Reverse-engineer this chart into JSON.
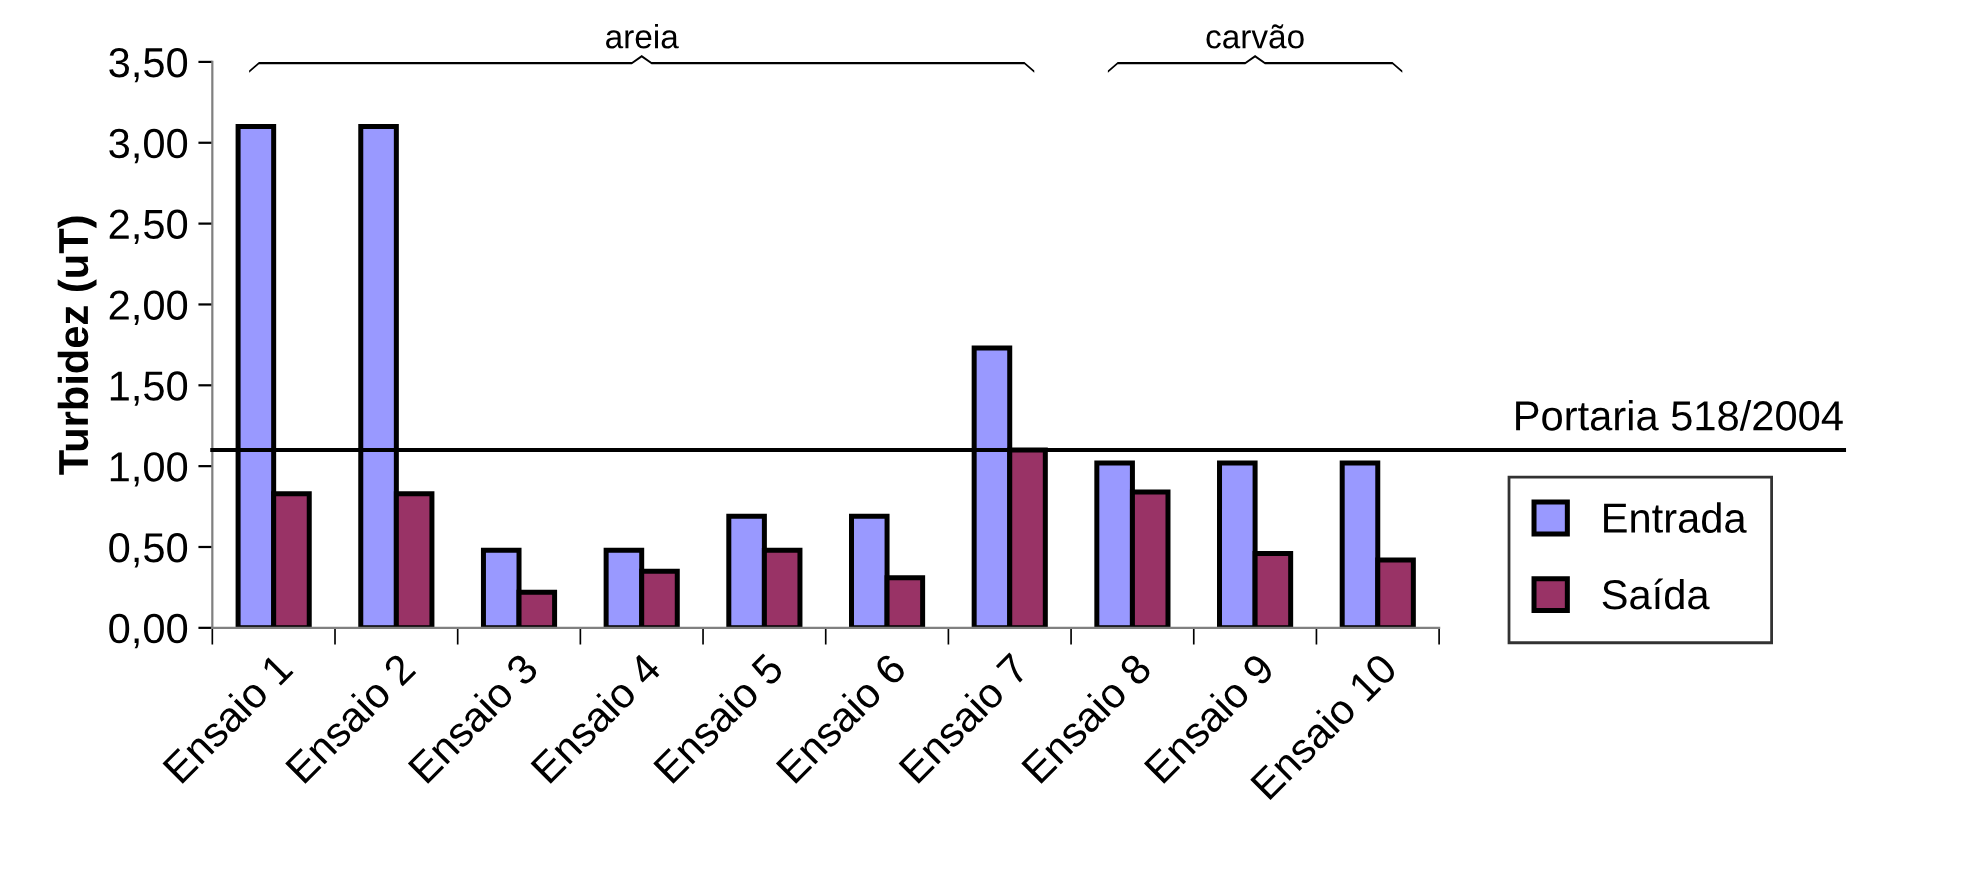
{
  "chart_data": {
    "type": "bar",
    "ylabel": "Turbidez (uT)",
    "categories": [
      "Ensaio 1",
      "Ensaio 2",
      "Ensaio 3",
      "Ensaio 4",
      "Ensaio 5",
      "Ensaio 6",
      "Ensaio 7",
      "Ensaio 8",
      "Ensaio 9",
      "Ensaio 10"
    ],
    "series": [
      {
        "name": "Entrada",
        "color": "#9999ff",
        "values": [
          3.1,
          3.1,
          0.48,
          0.48,
          0.69,
          0.69,
          1.73,
          1.02,
          1.02,
          1.02
        ]
      },
      {
        "name": "Saída",
        "color": "#993366",
        "values": [
          0.83,
          0.83,
          0.22,
          0.35,
          0.48,
          0.31,
          1.1,
          0.84,
          0.46,
          0.42
        ]
      }
    ],
    "ylim": [
      0,
      3.5
    ],
    "yticks": [
      {
        "value": 0,
        "label": "0,00"
      },
      {
        "value": 0.5,
        "label": "0,50"
      },
      {
        "value": 1.0,
        "label": "1,00"
      },
      {
        "value": 1.5,
        "label": "1,50"
      },
      {
        "value": 2.0,
        "label": "2,00"
      },
      {
        "value": 2.5,
        "label": "2,50"
      },
      {
        "value": 3.0,
        "label": "3,00"
      },
      {
        "value": 3.5,
        "label": "3,50"
      }
    ],
    "ref_lines": [
      {
        "axis": "y",
        "value": 1.1,
        "label": "Portaria 518/2004",
        "color": "#000000"
      }
    ],
    "annotations": [
      "areia",
      "carvão"
    ],
    "grid": false,
    "legend": "right"
  }
}
